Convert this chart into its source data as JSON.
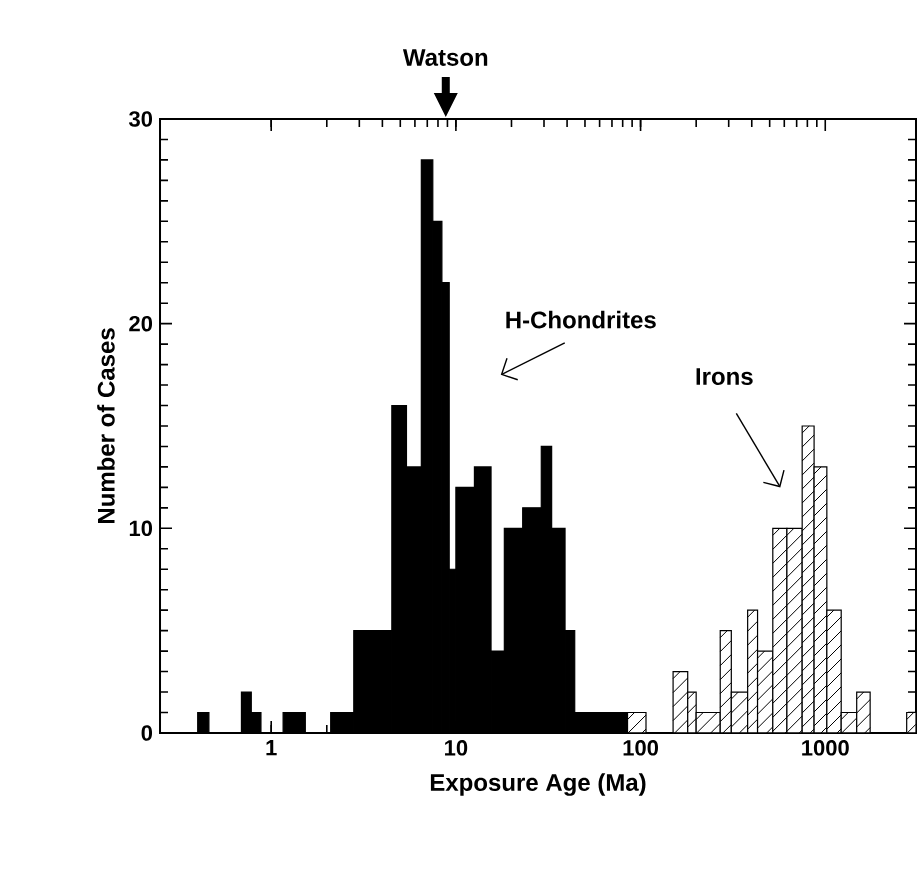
{
  "chart_data": {
    "type": "histogram",
    "xlabel": "Exposure Age (Ma)",
    "ylabel": "Number of Cases",
    "bins": [
      0.4,
      0.46,
      0.69,
      0.78,
      0.88,
      1.16,
      1.53,
      2.1,
      2.8,
      4.5,
      5.4,
      6.5,
      7.5,
      8.4,
      9.2,
      10,
      12.6,
      15.5,
      18.3,
      23,
      29,
      33,
      39,
      44,
      85,
      107,
      150,
      180,
      200,
      270,
      310,
      380,
      430,
      520,
      620,
      750,
      870,
      1020,
      1220,
      1480,
      1750,
      2760,
      3100
    ],
    "series": [
      {
        "name": "H-Chondrites",
        "color": "#000000",
        "values": [
          1,
          0,
          2,
          1,
          0,
          1,
          0,
          1,
          5,
          16,
          13,
          28,
          25,
          22,
          8,
          12,
          13,
          4,
          10,
          11,
          14,
          10,
          5,
          1,
          0,
          0,
          0,
          0,
          0,
          0,
          0,
          0,
          0,
          0,
          0,
          0,
          0,
          0,
          0,
          0,
          0,
          0
        ]
      },
      {
        "name": "Irons",
        "color": "#000000",
        "values": [
          0,
          0,
          0,
          0,
          0,
          0,
          0,
          0,
          0,
          0,
          0,
          0,
          0,
          0,
          0,
          0,
          0,
          0,
          0,
          0,
          0,
          0,
          0,
          0,
          1,
          0,
          3,
          2,
          1,
          5,
          2,
          6,
          4,
          10,
          10,
          15,
          13,
          6,
          1,
          2,
          0,
          1
        ]
      }
    ],
    "annotations": [
      "Watson"
    ],
    "log": "x",
    "xlim": [
      0.25,
      3100
    ],
    "xticks": [
      1,
      10,
      100,
      1000
    ],
    "ylim": [
      0,
      30
    ],
    "yticks": [
      0,
      10,
      20,
      30
    ]
  }
}
